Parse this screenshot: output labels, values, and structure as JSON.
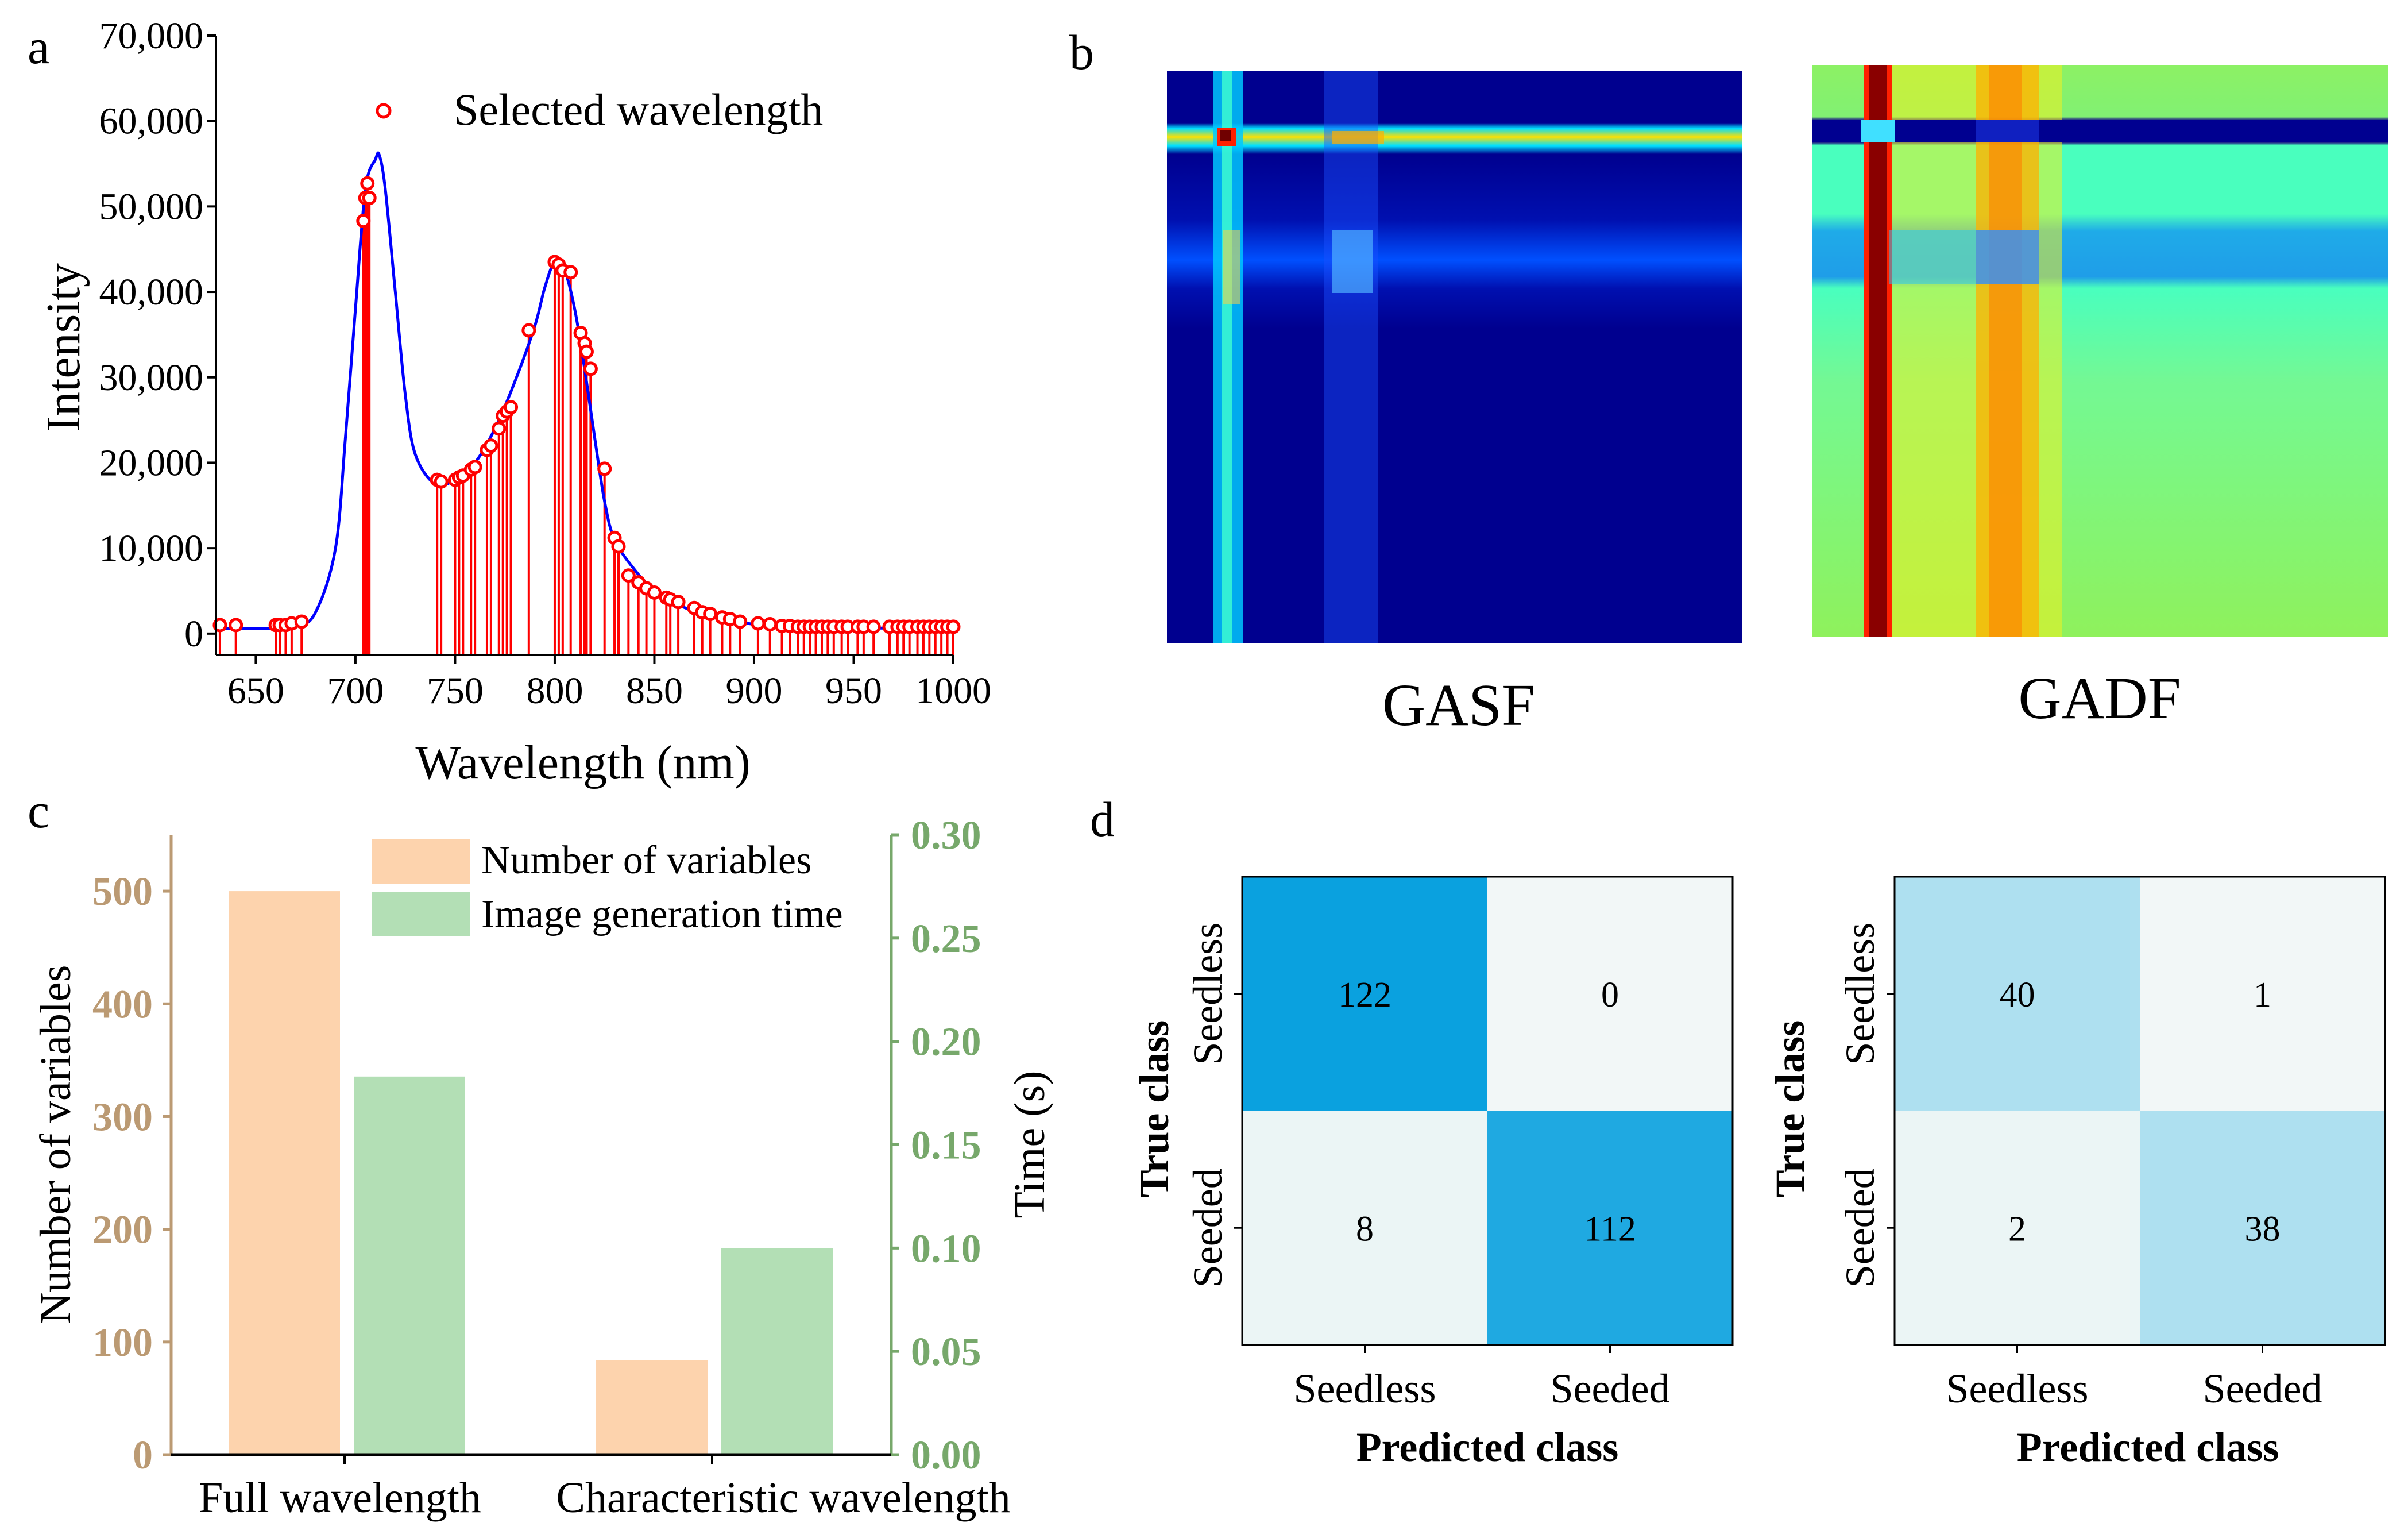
{
  "colors": {
    "spectrum_line": "#0000ff",
    "stem": "#ff0000",
    "bar_variables": "#fdd3ad",
    "bar_time": "#b3dfb5",
    "left_axis_text": "#bb9a73",
    "right_axis_text": "#77a86b",
    "cm_high": "#0aa1df",
    "cm_high2": "#1fa9e1",
    "cm_mid": "#aee0f0",
    "cm_low": "#ebf5f5",
    "cm_low2": "#f2f7f7"
  },
  "panel_labels": {
    "a": "a",
    "b": "b",
    "c": "c",
    "d": "d"
  },
  "chart_data": [
    {
      "panel": "a",
      "type": "line",
      "xlabel": "Wavelength (nm)",
      "ylabel": "Intensity",
      "xlim": [
        630,
        1000
      ],
      "ylim": [
        -2500,
        70000
      ],
      "x_ticks": [
        "650",
        "700",
        "750",
        "800",
        "850",
        "900",
        "950",
        "1000"
      ],
      "y_ticks": [
        "0",
        "10,000",
        "20,000",
        "30,000",
        "40,000",
        "50,000",
        "60,000",
        "70,000"
      ],
      "legend": [
        {
          "label": "Selected wavelength",
          "marker": "open-circle"
        }
      ],
      "legend_position": "top-center",
      "curve": {
        "x": [
          630,
          650,
          670,
          680,
          690,
          695,
          700,
          705,
          710,
          712,
          715,
          720,
          725,
          730,
          740,
          750,
          760,
          770,
          780,
          790,
          795,
          800,
          805,
          810,
          815,
          820,
          825,
          830,
          840,
          850,
          860,
          870,
          880,
          890,
          900,
          920,
          940,
          960,
          980,
          1000
        ],
        "y": [
          600,
          600,
          900,
          2500,
          10000,
          23000,
          38000,
          52000,
          55500,
          56000,
          52000,
          40000,
          28000,
          21000,
          17500,
          18000,
          20000,
          24000,
          29500,
          36000,
          40500,
          43500,
          42500,
          38000,
          31000,
          23000,
          15500,
          11000,
          7500,
          5000,
          3600,
          2600,
          1900,
          1400,
          1100,
          800,
          700,
          650,
          650,
          600
        ]
      },
      "selected_wavelengths": {
        "x": [
          632,
          640,
          660,
          662,
          665,
          668,
          673,
          704,
          705,
          706,
          707,
          741,
          743,
          750,
          752,
          754,
          758,
          760,
          766,
          768,
          772,
          774,
          776,
          778,
          787,
          800,
          802,
          804,
          808,
          813,
          815,
          816,
          818,
          825,
          830,
          832,
          837,
          842,
          846,
          850,
          856,
          858,
          862,
          870,
          874,
          878,
          884,
          888,
          893,
          902,
          908,
          914,
          918,
          922,
          925,
          928,
          931,
          934,
          937,
          940,
          944,
          947,
          952,
          955,
          960,
          968,
          972,
          975,
          978,
          982,
          985,
          988,
          991,
          994,
          997,
          1000
        ],
        "y": [
          1000,
          1000,
          1000,
          1000,
          1000,
          1200,
          1400,
          48300,
          51000,
          52700,
          51000,
          18000,
          17800,
          18000,
          18300,
          18500,
          19200,
          19500,
          21500,
          22000,
          24000,
          25500,
          26000,
          26500,
          35500,
          43500,
          43200,
          42500,
          42300,
          35200,
          34000,
          33000,
          31000,
          19300,
          11200,
          10200,
          6800,
          6000,
          5300,
          4800,
          4200,
          4000,
          3700,
          3000,
          2500,
          2300,
          1900,
          1700,
          1400,
          1200,
          1100,
          900,
          900,
          800,
          800,
          800,
          800,
          800,
          800,
          800,
          800,
          800,
          800,
          800,
          800,
          800,
          800,
          800,
          800,
          800,
          800,
          800,
          800,
          800,
          800,
          800
        ]
      }
    },
    {
      "panel": "b",
      "type": "heatmap",
      "images": [
        {
          "label": "GASF"
        },
        {
          "label": "GADF"
        }
      ]
    },
    {
      "panel": "c",
      "type": "bar",
      "categories": [
        "Full wavelength",
        "Characteristic wavelength"
      ],
      "series": [
        {
          "name": "Number of variables",
          "axis": "left",
          "values": [
            500,
            84
          ]
        },
        {
          "name": "Image generation time",
          "axis": "right",
          "values": [
            0.183,
            0.1
          ]
        }
      ],
      "ylabel_left": "Number of variables",
      "ylabel_right": "Time (s)",
      "ylim_left": [
        0,
        550
      ],
      "ylim_right": [
        0,
        0.3
      ],
      "y_ticks_left": [
        "0",
        "100",
        "200",
        "300",
        "400",
        "500"
      ],
      "y_ticks_right": [
        "0.00",
        "0.05",
        "0.10",
        "0.15",
        "0.20",
        "0.25",
        "0.30"
      ],
      "legend_position": "top-right"
    },
    {
      "panel": "d",
      "type": "table",
      "xlabel": "Predicted class",
      "ylabel": "True class",
      "row_labels": [
        "Seedless",
        "Seeded"
      ],
      "col_labels": [
        "Seedless",
        "Seeded"
      ],
      "matrices": [
        {
          "values": [
            [
              "122",
              "0"
            ],
            [
              "8",
              "112"
            ]
          ]
        },
        {
          "values": [
            [
              "40",
              "1"
            ],
            [
              "2",
              "38"
            ]
          ]
        }
      ]
    }
  ]
}
